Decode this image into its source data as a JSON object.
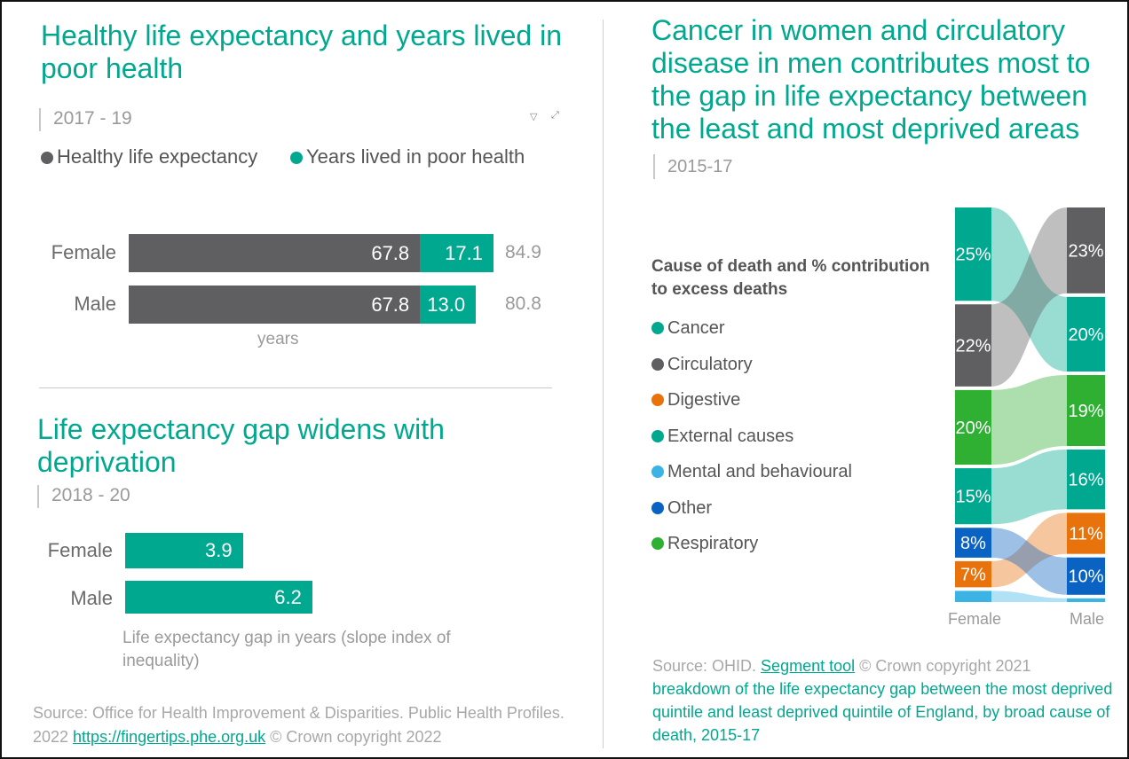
{
  "colors": {
    "teal": "#00a88f",
    "grey": "#5f5f61",
    "digestive": "#e8730c",
    "mental": "#3bb4e5",
    "other": "#0a62c2",
    "respiratory": "#2fb033"
  },
  "panel1": {
    "title": "Healthy life expectancy and years lived in poor health",
    "period": "2017 - 19",
    "icons": [
      "filter-icon",
      "expand-icon"
    ]
  },
  "panel2": {
    "title": "Life expectancy gap widens with deprivation",
    "period": "2018 - 20"
  },
  "panel3": {
    "title": "Cancer in women and circulatory disease in men contributes most to the gap in life expectancy between the least and most deprived areas",
    "period": "2015-17",
    "legend_title": "Cause of death and % contribution to  excess deaths"
  },
  "footer_left": {
    "text1": "Source: Office for Health Improvement & Disparities. Public Health Profiles. 2022 ",
    "link": "https://fingertips.phe.org.uk",
    "text2": " © Crown copyright 2022"
  },
  "footer_right": {
    "text1": "Source: OHID. ",
    "link": "Segment tool",
    "text2": " © Crown copyright 2021",
    "text3": "breakdown of the life expectancy gap between the most deprived quintile and least deprived quintile of England, by broad cause of death, 2015-17"
  },
  "chart_data": [
    {
      "type": "bar",
      "stacked": true,
      "orientation": "horizontal",
      "categories": [
        "Female",
        "Male"
      ],
      "series": [
        {
          "name": "Healthy life expectancy",
          "values": [
            67.8,
            67.8
          ],
          "color": "#5f5f61"
        },
        {
          "name": "Years lived in poor health",
          "values": [
            17.1,
            13.0
          ],
          "color": "#00a88f"
        }
      ],
      "totals": [
        "84.9",
        "80.8"
      ],
      "xlabel": "years",
      "legend": "top"
    },
    {
      "type": "bar",
      "orientation": "horizontal",
      "categories": [
        "Female",
        "Male"
      ],
      "values": [
        3.9,
        6.2
      ],
      "labels": [
        "3.9",
        "6.2"
      ],
      "xlabel": "Life expectancy gap in years (slope index of inequality)"
    },
    {
      "type": "sankey",
      "columns": [
        "Female",
        "Male"
      ],
      "legend": "left",
      "causes": [
        {
          "name": "Cancer",
          "color": "#00a88f",
          "female": 25,
          "male": 20
        },
        {
          "name": "Circulatory",
          "color": "#5f5f61",
          "female": 22,
          "male": 23
        },
        {
          "name": "Digestive",
          "color": "#e8730c",
          "female": 7,
          "male": 11
        },
        {
          "name": "External causes",
          "color": "#00a88f",
          "female": 15,
          "male": 16
        },
        {
          "name": "Mental and behavioural",
          "color": "#3bb4e5",
          "female": 3,
          "male": 1
        },
        {
          "name": "Other",
          "color": "#0a62c2",
          "female": 8,
          "male": 10
        },
        {
          "name": "Respiratory",
          "color": "#2fb033",
          "female": 20,
          "male": 19
        }
      ],
      "female_order": [
        "Cancer",
        "Circulatory",
        "Respiratory",
        "External causes",
        "Other",
        "Digestive",
        "Mental and behavioural"
      ],
      "male_order": [
        "Circulatory",
        "Cancer",
        "Respiratory",
        "External causes",
        "Digestive",
        "Other",
        "Mental and behavioural"
      ],
      "labeled_min": 5
    }
  ]
}
